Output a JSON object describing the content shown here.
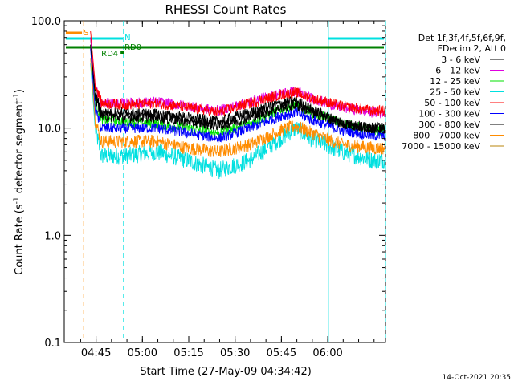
{
  "chart_data": {
    "type": "line",
    "title": "RHESSI Count Rates",
    "xlabel": "Start Time (27-May-09 04:34:42)",
    "ylabel_main": "Count Rate (s",
    "ylabel_exp": "-1",
    "ylabel_mid": " detector segment",
    "ylabel_exp2": "-1",
    "ylabel_end": ")",
    "yscale": "log",
    "ylim": [
      0.1,
      100
    ],
    "xlim_minutes": [
      0,
      104
    ],
    "x_ticks": [
      {
        "label": "04:45",
        "min": 10.3
      },
      {
        "label": "05:00",
        "min": 25.3
      },
      {
        "label": "05:15",
        "min": 40.3
      },
      {
        "label": "05:30",
        "min": 55.3
      },
      {
        "label": "05:45",
        "min": 70.3
      },
      {
        "label": "06:00",
        "min": 85.3
      }
    ],
    "y_ticks": [
      {
        "label": "100.0",
        "value": 100
      },
      {
        "label": "10.0",
        "value": 10
      },
      {
        "label": "1.0",
        "value": 1
      },
      {
        "label": "0.1",
        "value": 0.1
      }
    ],
    "legend_header": [
      "Det 1f,3f,4f,5f,6f,9f,",
      "FDecim 2, Att 0"
    ],
    "series": [
      {
        "name": "3 - 6 keV",
        "color": "#000000",
        "values": [
          [
            8.5,
            70
          ],
          [
            10,
            22
          ],
          [
            12,
            14
          ],
          [
            20,
            14
          ],
          [
            30,
            13.5
          ],
          [
            40,
            12.5
          ],
          [
            50,
            11.5
          ],
          [
            60,
            14
          ],
          [
            70,
            17
          ],
          [
            75,
            18
          ],
          [
            80,
            15
          ],
          [
            90,
            11
          ],
          [
            100,
            10
          ],
          [
            104,
            10
          ]
        ]
      },
      {
        "name": "6 - 12 keV",
        "color": "#e000e0",
        "values": [
          [
            8.5,
            70
          ],
          [
            10,
            25
          ],
          [
            12,
            17
          ],
          [
            20,
            17
          ],
          [
            30,
            17.5
          ],
          [
            40,
            16
          ],
          [
            50,
            14.5
          ],
          [
            60,
            17.5
          ],
          [
            70,
            21
          ],
          [
            75,
            22
          ],
          [
            80,
            19
          ],
          [
            90,
            15.5
          ],
          [
            100,
            14
          ],
          [
            104,
            14
          ]
        ]
      },
      {
        "name": "12 - 25 keV",
        "color": "#00e000",
        "values": [
          [
            8.5,
            60
          ],
          [
            10,
            18
          ],
          [
            12,
            12
          ],
          [
            20,
            11.5
          ],
          [
            30,
            11
          ],
          [
            40,
            10
          ],
          [
            50,
            9
          ],
          [
            60,
            11
          ],
          [
            70,
            15
          ],
          [
            75,
            16.5
          ],
          [
            80,
            14
          ],
          [
            90,
            11
          ],
          [
            100,
            9.5
          ],
          [
            104,
            9.5
          ]
        ]
      },
      {
        "name": "25 - 50 keV",
        "color": "#00e0e0",
        "values": [
          [
            8.5,
            40
          ],
          [
            10,
            10
          ],
          [
            12,
            5.5
          ],
          [
            20,
            5.5
          ],
          [
            30,
            6
          ],
          [
            40,
            5
          ],
          [
            50,
            4
          ],
          [
            60,
            5
          ],
          [
            70,
            8
          ],
          [
            75,
            10
          ],
          [
            80,
            8
          ],
          [
            90,
            6
          ],
          [
            100,
            5
          ],
          [
            104,
            5
          ]
        ]
      },
      {
        "name": "50 - 100 keV",
        "color": "#ff0000",
        "values": [
          [
            8.5,
            80
          ],
          [
            10,
            26
          ],
          [
            12,
            17
          ],
          [
            20,
            16.5
          ],
          [
            30,
            17
          ],
          [
            40,
            15.5
          ],
          [
            50,
            14
          ],
          [
            60,
            17
          ],
          [
            70,
            20.5
          ],
          [
            75,
            21.5
          ],
          [
            80,
            19
          ],
          [
            90,
            16
          ],
          [
            100,
            14.5
          ],
          [
            104,
            14.5
          ]
        ]
      },
      {
        "name": "100 - 300 keV",
        "color": "#0000ff",
        "values": [
          [
            8.5,
            55
          ],
          [
            10,
            15
          ],
          [
            12,
            10
          ],
          [
            20,
            10
          ],
          [
            30,
            10
          ],
          [
            40,
            9
          ],
          [
            50,
            8
          ],
          [
            60,
            10
          ],
          [
            70,
            13
          ],
          [
            75,
            14
          ],
          [
            80,
            12
          ],
          [
            90,
            9.5
          ],
          [
            100,
            8.5
          ],
          [
            104,
            8.5
          ]
        ]
      },
      {
        "name": "300 - 800 keV",
        "color": "#000000",
        "values": [
          [
            8.5,
            60
          ],
          [
            10,
            20
          ],
          [
            12,
            13
          ],
          [
            20,
            12.5
          ],
          [
            30,
            12.5
          ],
          [
            40,
            11.5
          ],
          [
            50,
            10.5
          ],
          [
            60,
            12.5
          ],
          [
            70,
            15.5
          ],
          [
            75,
            16.5
          ],
          [
            80,
            14
          ],
          [
            90,
            11
          ],
          [
            100,
            10
          ],
          [
            104,
            10
          ]
        ]
      },
      {
        "name": "800 - 7000 keV",
        "color": "#ff8c00",
        "values": [
          [
            8.5,
            45
          ],
          [
            10,
            12
          ],
          [
            12,
            7.5
          ],
          [
            20,
            7.5
          ],
          [
            30,
            7.5
          ],
          [
            40,
            6.5
          ],
          [
            50,
            6
          ],
          [
            60,
            7
          ],
          [
            70,
            9.5
          ],
          [
            75,
            10.5
          ],
          [
            80,
            9
          ],
          [
            90,
            7
          ],
          [
            100,
            6.5
          ],
          [
            104,
            6.5
          ]
        ]
      },
      {
        "name": "7000 - 15000 keV",
        "color": "#b8860b",
        "values": []
      }
    ],
    "flags": [
      {
        "label": "S",
        "color": "#ff8c00",
        "start": 0,
        "end": 6
      },
      {
        "label": "N",
        "color": "#00e0e0",
        "start": 0,
        "end": 19
      },
      {
        "label": "RD0",
        "color": "#008000",
        "start": 19,
        "end": 19
      },
      {
        "label": "RD4",
        "color": "#008000",
        "start": 18.5,
        "end": 18.5
      }
    ],
    "vlines": [
      {
        "min": 6.3,
        "color": "#ff8c00",
        "style": "dashed"
      },
      {
        "min": 19.2,
        "color": "#00e0e0",
        "style": "dashed"
      },
      {
        "min": 85.5,
        "color": "#00e0e0",
        "style": "solid"
      },
      {
        "min": 104,
        "color": "#00e0e0",
        "style": "dashed"
      }
    ]
  },
  "footer": {
    "date": "14-Oct-2021 20:35"
  }
}
